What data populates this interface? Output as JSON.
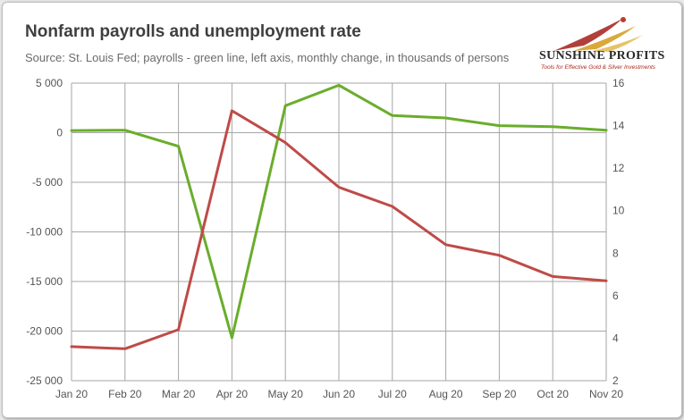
{
  "title": "Nonfarm payrolls and unemployment rate",
  "subtitle": "Source: St. Louis Fed; payrolls - green line, left axis, monthly change, in thousands of persons",
  "logo": {
    "name": "SUNSHINE PROFITS",
    "tagline": "Tools for Effective Gold & Silver Investments"
  },
  "colors": {
    "payrolls": "#6aad2c",
    "unemployment": "#be4b48",
    "grid": "#a6a6a6",
    "background": "#ffffff"
  },
  "chart_data": {
    "type": "line",
    "categories": [
      "Jan 20",
      "Feb 20",
      "Mar 20",
      "Apr 20",
      "May 20",
      "Jun 20",
      "Jul 20",
      "Aug 20",
      "Sep 20",
      "Oct 20",
      "Nov 20"
    ],
    "series": [
      {
        "axis": "left",
        "color": "#6aad2c",
        "values": [
          214,
          251,
          -1373,
          -20679,
          2725,
          4781,
          1726,
          1489,
          716,
          610,
          245
        ]
      },
      {
        "axis": "right",
        "color": "#be4b48",
        "values": [
          3.6,
          3.5,
          4.4,
          14.7,
          13.2,
          11.1,
          10.2,
          8.4,
          7.9,
          6.9,
          6.7
        ]
      }
    ],
    "y_left": {
      "range": [
        -25000,
        5000
      ],
      "ticks": [
        5000,
        0,
        -5000,
        -10000,
        -15000,
        -20000,
        -25000
      ],
      "tick_labels": [
        "5 000",
        "0",
        "-5 000",
        "-10 000",
        "-15 000",
        "-20 000",
        "-25 000"
      ]
    },
    "y_right": {
      "range": [
        2,
        16
      ],
      "ticks": [
        16,
        14,
        12,
        10,
        8,
        6,
        4,
        2
      ],
      "tick_labels": [
        "16",
        "14",
        "12",
        "10",
        "8",
        "6",
        "4",
        "2"
      ]
    },
    "grid": true,
    "legend": "none"
  }
}
